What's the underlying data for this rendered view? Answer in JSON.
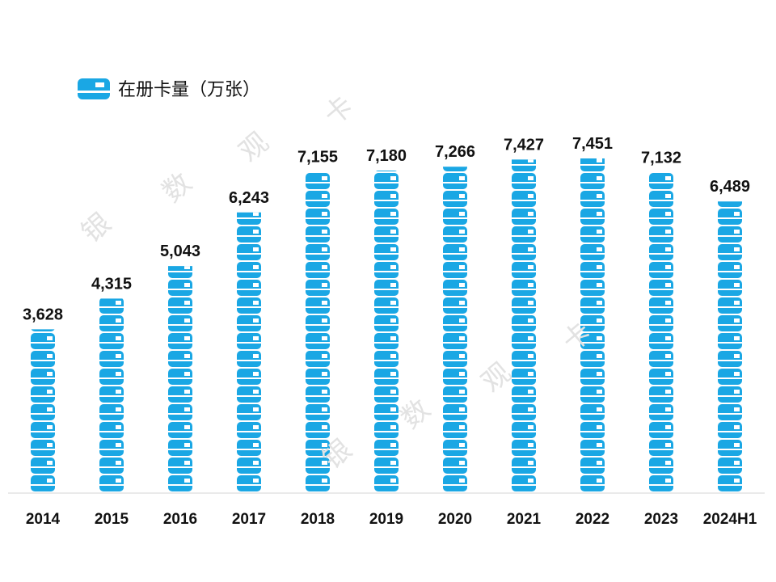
{
  "legend": {
    "label": "在册卡量（万张）",
    "icon": "bank-card-icon"
  },
  "watermarks": [
    "银",
    "数",
    "观",
    "卡",
    "银",
    "数",
    "观",
    "卡"
  ],
  "colors": {
    "bar": "#1aa7e4",
    "stripe": "#ffffff",
    "label": "#111111",
    "baseline": "#d6d6d6"
  },
  "chart_data": {
    "type": "bar",
    "title": "",
    "series_name": "在册卡量（万张）",
    "categories": [
      "2014",
      "2015",
      "2016",
      "2017",
      "2018",
      "2019",
      "2020",
      "2021",
      "2022",
      "2023",
      "2024H1"
    ],
    "values": [
      3628,
      4315,
      5043,
      6243,
      7155,
      7180,
      7266,
      7427,
      7451,
      7132,
      6489
    ],
    "value_labels": [
      "3,628",
      "4,315",
      "5,043",
      "6,243",
      "7,155",
      "7,180",
      "7,266",
      "7,427",
      "7,451",
      "7,132",
      "6,489"
    ],
    "xlabel": "",
    "ylabel": "",
    "ylim": [
      0,
      7451
    ],
    "grid": false,
    "legend_position": "top-left"
  }
}
